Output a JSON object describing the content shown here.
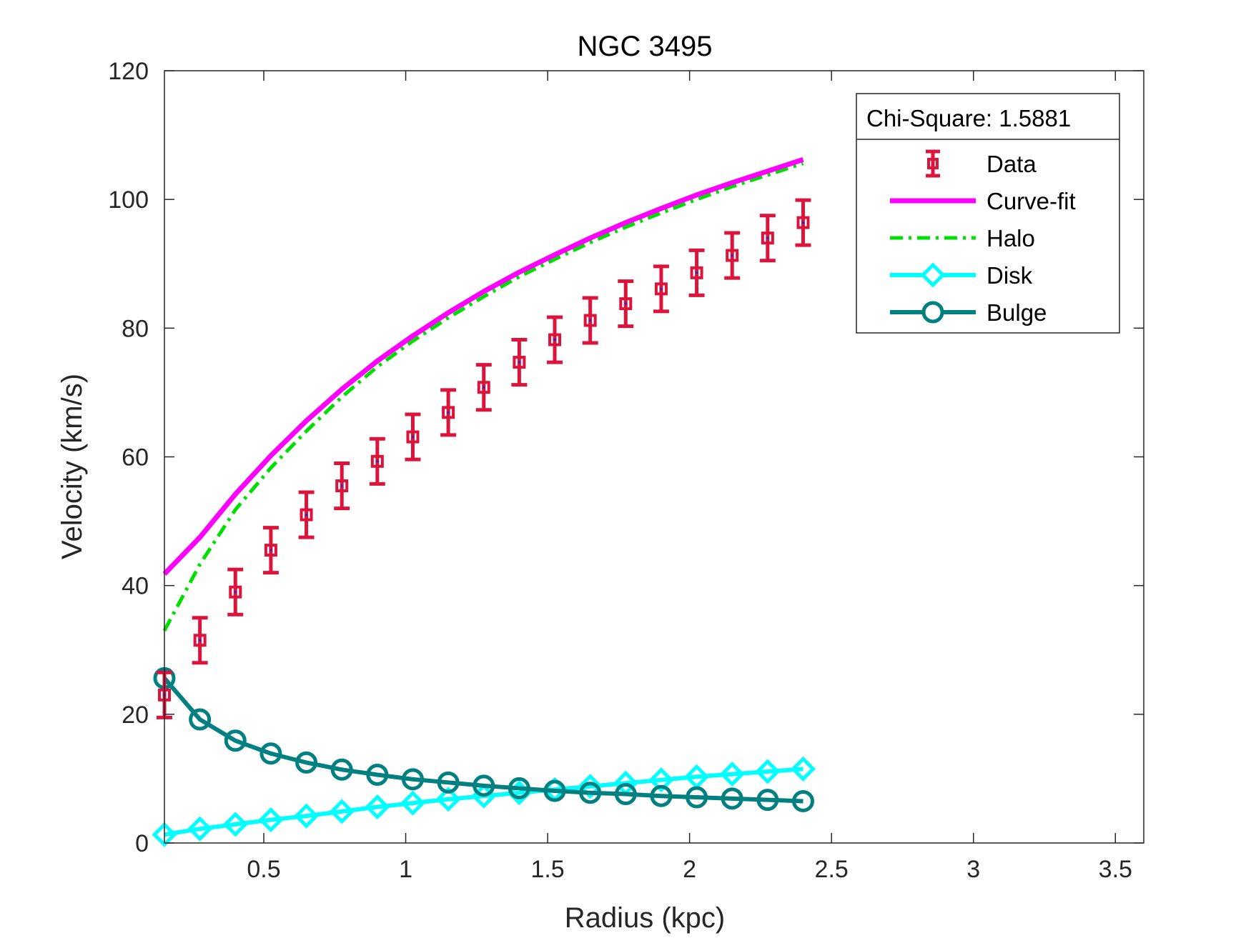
{
  "chart_data": {
    "type": "line",
    "title": "NGC 3495",
    "xlabel": "Radius (kpc)",
    "ylabel": "Velocity (km/s)",
    "xlim": [
      0.15,
      3.6
    ],
    "ylim": [
      0,
      120
    ],
    "xticks": [
      0.5,
      1,
      1.5,
      2,
      2.5,
      3,
      3.5
    ],
    "xtick_labels": [
      "0.5",
      "1",
      "1.5",
      "2",
      "2.5",
      "3",
      "3.5"
    ],
    "yticks": [
      0,
      20,
      40,
      60,
      80,
      100,
      120
    ],
    "ytick_labels": [
      "0",
      "20",
      "40",
      "60",
      "80",
      "100",
      "120"
    ],
    "grid": false,
    "legend": {
      "position": "top-right",
      "header": "Chi-Square: 1.5881",
      "entries": [
        "Data",
        "Curve-fit",
        "Halo",
        "Disk",
        "Bulge"
      ]
    },
    "colors": {
      "data": "#dc143c",
      "data_center": "#1a2bd6",
      "curve_fit": "#ff00ff",
      "halo": "#00e000",
      "disk": "#00ffff",
      "bulge": "#008080"
    },
    "x": [
      0.15,
      0.275,
      0.4,
      0.525,
      0.65,
      0.775,
      0.9,
      1.025,
      1.15,
      1.275,
      1.4,
      1.525,
      1.65,
      1.775,
      1.9,
      2.025,
      2.15,
      2.275,
      2.4
    ],
    "data": {
      "name": "Data",
      "values": [
        23.0,
        31.5,
        39.0,
        45.5,
        51.0,
        55.5,
        59.3,
        63.1,
        66.9,
        70.8,
        74.7,
        78.2,
        81.2,
        83.8,
        86.1,
        88.6,
        91.3,
        94.0,
        96.4
      ],
      "error": 3.5
    },
    "series": [
      {
        "name": "Curve-fit",
        "values": [
          41.8,
          47.5,
          54.2,
          60.2,
          65.6,
          70.5,
          74.9,
          78.8,
          82.4,
          85.7,
          88.7,
          91.4,
          94.0,
          96.4,
          98.6,
          100.7,
          102.6,
          104.4,
          106.2
        ]
      },
      {
        "name": "Halo",
        "values": [
          33.0,
          43.3,
          51.8,
          58.3,
          64.0,
          69.3,
          74.0,
          78.0,
          81.6,
          84.9,
          88.0,
          90.7,
          93.3,
          95.7,
          97.9,
          100.0,
          102.0,
          103.8,
          105.6
        ]
      },
      {
        "name": "Disk",
        "values": [
          1.3,
          2.2,
          2.9,
          3.6,
          4.2,
          4.9,
          5.6,
          6.2,
          6.8,
          7.3,
          7.8,
          8.3,
          8.8,
          9.3,
          9.8,
          10.3,
          10.7,
          11.1,
          11.5
        ]
      },
      {
        "name": "Bulge",
        "values": [
          25.6,
          19.2,
          15.9,
          13.9,
          12.5,
          11.4,
          10.6,
          9.9,
          9.4,
          8.9,
          8.5,
          8.1,
          7.8,
          7.6,
          7.3,
          7.1,
          6.9,
          6.7,
          6.5
        ]
      }
    ]
  }
}
